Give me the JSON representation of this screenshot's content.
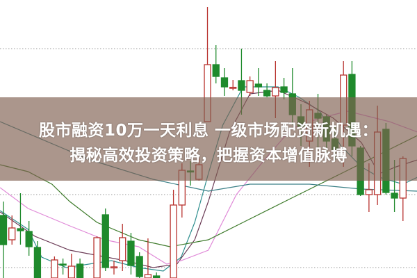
{
  "headline": {
    "line1": "股市融资10万一天利息 一级市场配资新机遇：",
    "line2": "揭秘高效投资策略，把握资本增值脉搏"
  },
  "colors": {
    "up": "#b8322e",
    "down": "#1f8a2c",
    "grid": "#9a9a9a",
    "banner": "#806050"
  },
  "chart_data": {
    "type": "candlestick",
    "title": "",
    "xlabel": "",
    "ylabel": "",
    "ylim": [
      0,
      100
    ],
    "xlim": [
      -0.5,
      48.5
    ],
    "grid": {
      "horizontal_dotted": [
        82.5,
        30,
        3.75
      ]
    },
    "candles": [
      {
        "i": 0,
        "o": 22.5,
        "h": 27.5,
        "l": 0,
        "c": 12
      },
      {
        "i": 1,
        "o": 13.75,
        "h": 22.5,
        "l": 12,
        "c": 18
      },
      {
        "i": 2,
        "o": 17.75,
        "h": 30.5,
        "l": 12,
        "c": 17
      },
      {
        "i": 3,
        "o": 16.75,
        "h": 20.5,
        "l": 8,
        "c": 11.25
      },
      {
        "i": 4,
        "o": 11,
        "h": 13.25,
        "l": 0,
        "c": 0
      },
      {
        "i": 6,
        "o": 0,
        "h": 7.75,
        "l": 0,
        "c": 6.5
      },
      {
        "i": 7,
        "o": 5,
        "h": 7,
        "l": 1.25,
        "c": 4.75
      },
      {
        "i": 8,
        "o": 0,
        "h": 8.75,
        "l": 0,
        "c": 4.25
      },
      {
        "i": 9,
        "o": 5,
        "h": 7,
        "l": 0,
        "c": 0
      },
      {
        "i": 11,
        "o": 0,
        "h": 15,
        "l": 0,
        "c": 14.5
      },
      {
        "i": 12,
        "o": 22.75,
        "h": 25,
        "l": 2.5,
        "c": 3.75
      },
      {
        "i": 13,
        "o": 3.75,
        "h": 6.25,
        "l": 1.25,
        "c": 4
      },
      {
        "i": 14,
        "o": 6.25,
        "h": 19.5,
        "l": 2.5,
        "c": 14.5
      },
      {
        "i": 15,
        "o": 13.25,
        "h": 16.25,
        "l": 1.25,
        "c": 4.5
      },
      {
        "i": 16,
        "o": 7.75,
        "h": 9.25,
        "l": 0,
        "c": 0.5
      },
      {
        "i": 17,
        "o": 0,
        "h": 14.25,
        "l": 0,
        "c": 1.25
      },
      {
        "i": 18,
        "o": 0.75,
        "h": 2,
        "l": 0,
        "c": 0
      },
      {
        "i": 20,
        "o": 0,
        "h": 31.75,
        "l": 0,
        "c": 26.25
      },
      {
        "i": 21,
        "o": 26.25,
        "h": 41.25,
        "l": 21.75,
        "c": 38.75
      },
      {
        "i": 22,
        "o": 38.5,
        "h": 42,
        "l": 33.25,
        "c": 38.25
      },
      {
        "i": 23,
        "o": 35.5,
        "h": 43,
        "l": 35,
        "c": 40.75
      },
      {
        "i": 24,
        "o": 56.25,
        "h": 97.5,
        "l": 56.25,
        "c": 76.75
      },
      {
        "i": 25,
        "o": 76.75,
        "h": 83.75,
        "l": 70,
        "c": 72.5
      },
      {
        "i": 26,
        "o": 72,
        "h": 75.5,
        "l": 65.5,
        "c": 68.75
      },
      {
        "i": 27,
        "o": 68.5,
        "h": 71.25,
        "l": 67.5,
        "c": 68.6
      },
      {
        "i": 28,
        "o": 71,
        "h": 82.5,
        "l": 58.75,
        "c": 67.5
      },
      {
        "i": 29,
        "o": 66.75,
        "h": 72.5,
        "l": 65.5,
        "c": 71
      },
      {
        "i": 30,
        "o": 69.75,
        "h": 75.5,
        "l": 65.5,
        "c": 68.75
      },
      {
        "i": 31,
        "o": 67.5,
        "h": 70,
        "l": 65,
        "c": 65.5
      },
      {
        "i": 32,
        "o": 65.5,
        "h": 78,
        "l": 57.5,
        "c": 68.5
      },
      {
        "i": 33,
        "o": 68.75,
        "h": 72,
        "l": 64.25,
        "c": 66.75
      },
      {
        "i": 34,
        "o": 66.25,
        "h": 75.5,
        "l": 55,
        "c": 58.75
      },
      {
        "i": 35,
        "o": 58,
        "h": 62.5,
        "l": 47.5,
        "c": 54.5
      },
      {
        "i": 36,
        "o": 49.25,
        "h": 63.75,
        "l": 40,
        "c": 60.5
      },
      {
        "i": 37,
        "o": 59.25,
        "h": 66.25,
        "l": 46.25,
        "c": 57.5
      },
      {
        "i": 38,
        "o": 58,
        "h": 58.75,
        "l": 43.75,
        "c": 49.25
      },
      {
        "i": 39,
        "o": 50,
        "h": 54.5,
        "l": 42.5,
        "c": 46.25
      },
      {
        "i": 40,
        "o": 55,
        "h": 78,
        "l": 40,
        "c": 73
      },
      {
        "i": 41,
        "o": 73.25,
        "h": 78,
        "l": 43.75,
        "c": 47.5
      },
      {
        "i": 42,
        "o": 46.75,
        "h": 47.5,
        "l": 29.5,
        "c": 30
      },
      {
        "i": 43,
        "o": 30,
        "h": 41.25,
        "l": 23.75,
        "c": 31.75
      },
      {
        "i": 44,
        "o": 30,
        "h": 62,
        "l": 26.25,
        "c": 52.5
      },
      {
        "i": 45,
        "o": 53.5,
        "h": 55.75,
        "l": 30,
        "c": 30.75
      },
      {
        "i": 46,
        "o": 30.5,
        "h": 42.5,
        "l": 23.75,
        "c": 28.75
      },
      {
        "i": 47,
        "o": 28.75,
        "h": 43.75,
        "l": 20.5,
        "c": 43
      }
    ],
    "series": [
      {
        "color": "#2f8f8f",
        "points": [
          [
            -0.4,
            24.25
          ],
          [
            2.9,
            17.5
          ],
          [
            4.5,
            7.5
          ],
          [
            7.4,
            3.75
          ],
          [
            12.7,
            6.25
          ],
          [
            15.9,
            3.75
          ],
          [
            18.8,
            2.5
          ],
          [
            20.9,
            7.5
          ],
          [
            22.5,
            20
          ],
          [
            24.1,
            37.5
          ],
          [
            25.8,
            55
          ],
          [
            28.2,
            68.75
          ],
          [
            32.3,
            68.75
          ],
          [
            34.8,
            65
          ],
          [
            37.2,
            60
          ],
          [
            39.7,
            47.5
          ],
          [
            42.1,
            40
          ],
          [
            44.2,
            36.25
          ],
          [
            47,
            33.75
          ],
          [
            48.7,
            36.25
          ]
        ]
      },
      {
        "color": "#6a3a55",
        "points": [
          [
            -0.4,
            23.75
          ],
          [
            3.7,
            15
          ],
          [
            7.8,
            10
          ],
          [
            14.3,
            6.25
          ],
          [
            17.6,
            3.75
          ],
          [
            20.4,
            5
          ],
          [
            22.5,
            13.75
          ],
          [
            24.1,
            27.5
          ],
          [
            26.6,
            52.5
          ],
          [
            29,
            66.25
          ],
          [
            32.3,
            67.5
          ],
          [
            35.6,
            63
          ],
          [
            38.8,
            57.5
          ],
          [
            42.1,
            48.75
          ],
          [
            44.2,
            37.5
          ],
          [
            46.2,
            40
          ],
          [
            48.7,
            42.5
          ]
        ]
      },
      {
        "color": "#e08ad8",
        "points": [
          [
            -0.4,
            32.5
          ],
          [
            2.9,
            25
          ],
          [
            7.8,
            18.75
          ],
          [
            11.9,
            13.75
          ],
          [
            15.9,
            11.25
          ],
          [
            19.2,
            5
          ],
          [
            20.9,
            6.25
          ],
          [
            24.1,
            10
          ],
          [
            27.4,
            30
          ],
          [
            30.7,
            42.5
          ],
          [
            33.9,
            53.75
          ],
          [
            37.2,
            57.5
          ],
          [
            40.5,
            60
          ],
          [
            45.4,
            56.25
          ],
          [
            48.7,
            52.5
          ]
        ]
      },
      {
        "color": "#3d7a2a",
        "points": [
          [
            -0.4,
            40.75
          ],
          [
            2.9,
            38.25
          ],
          [
            5.7,
            33.75
          ],
          [
            7.8,
            27.5
          ],
          [
            11,
            20
          ],
          [
            15.9,
            13.75
          ],
          [
            19.6,
            11.25
          ],
          [
            24.1,
            13.75
          ],
          [
            29,
            21.25
          ],
          [
            33.9,
            28.75
          ],
          [
            40.5,
            38.75
          ],
          [
            45.4,
            46.25
          ],
          [
            48.7,
            51.25
          ]
        ]
      },
      {
        "color": "#3a7f86",
        "points": [
          [
            -0.4,
            56.25
          ],
          [
            10.2,
            42.5
          ],
          [
            17.6,
            35.5
          ],
          [
            24.1,
            31.25
          ],
          [
            29,
            33.75
          ],
          [
            36,
            33.75
          ],
          [
            42.1,
            32
          ],
          [
            48.7,
            31.25
          ]
        ]
      }
    ]
  }
}
